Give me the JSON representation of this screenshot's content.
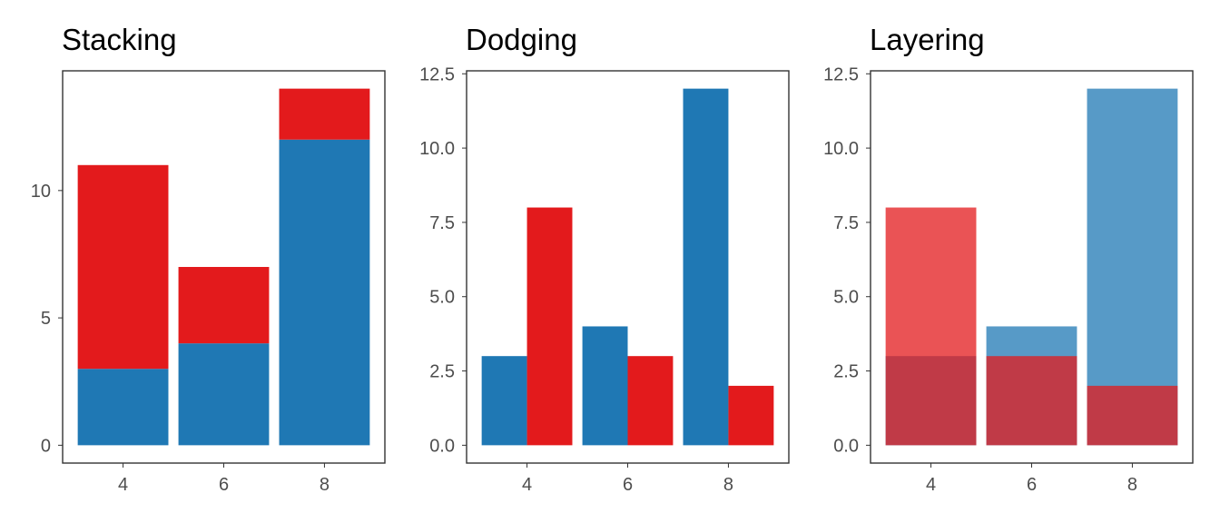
{
  "chart_data": [
    {
      "type": "bar",
      "mode": "stack",
      "title": "Stacking",
      "categories": [
        "4",
        "6",
        "8"
      ],
      "series": [
        {
          "key": "blue",
          "color": "#1f78b4",
          "opacity": 1,
          "values": [
            3,
            4,
            12
          ]
        },
        {
          "key": "red",
          "color": "#e31a1c",
          "opacity": 1,
          "values": [
            8,
            3,
            2
          ]
        }
      ],
      "ylim": [
        -0.7,
        14.7
      ],
      "yticks": [
        0,
        5,
        10
      ],
      "ytick_labels": [
        "0",
        "5",
        "10"
      ],
      "xlabel": "",
      "ylabel": "",
      "grid": false,
      "legend": "none"
    },
    {
      "type": "bar",
      "mode": "dodge",
      "title": "Dodging",
      "categories": [
        "4",
        "6",
        "8"
      ],
      "series": [
        {
          "key": "blue",
          "color": "#1f78b4",
          "opacity": 1,
          "values": [
            3,
            4,
            12
          ]
        },
        {
          "key": "red",
          "color": "#e31a1c",
          "opacity": 1,
          "values": [
            8,
            3,
            2
          ]
        }
      ],
      "ylim": [
        -0.6,
        12.6
      ],
      "yticks": [
        0,
        2.5,
        5,
        7.5,
        10,
        12.5
      ],
      "ytick_labels": [
        "0.0",
        "2.5",
        "5.0",
        "7.5",
        "10.0",
        "12.5"
      ],
      "xlabel": "",
      "ylabel": "",
      "grid": false,
      "legend": "none"
    },
    {
      "type": "bar",
      "mode": "layer",
      "title": "Layering",
      "categories": [
        "4",
        "6",
        "8"
      ],
      "series": [
        {
          "key": "blue",
          "color": "#1f78b4",
          "opacity": 0.75,
          "values": [
            3,
            4,
            12
          ]
        },
        {
          "key": "red",
          "color": "#e31a1c",
          "opacity": 0.75,
          "values": [
            8,
            3,
            2
          ]
        }
      ],
      "ylim": [
        -0.6,
        12.6
      ],
      "yticks": [
        0,
        2.5,
        5,
        7.5,
        10,
        12.5
      ],
      "ytick_labels": [
        "0.0",
        "2.5",
        "5.0",
        "7.5",
        "10.0",
        "12.5"
      ],
      "xlabel": "",
      "ylabel": "",
      "grid": false,
      "legend": "none"
    }
  ]
}
